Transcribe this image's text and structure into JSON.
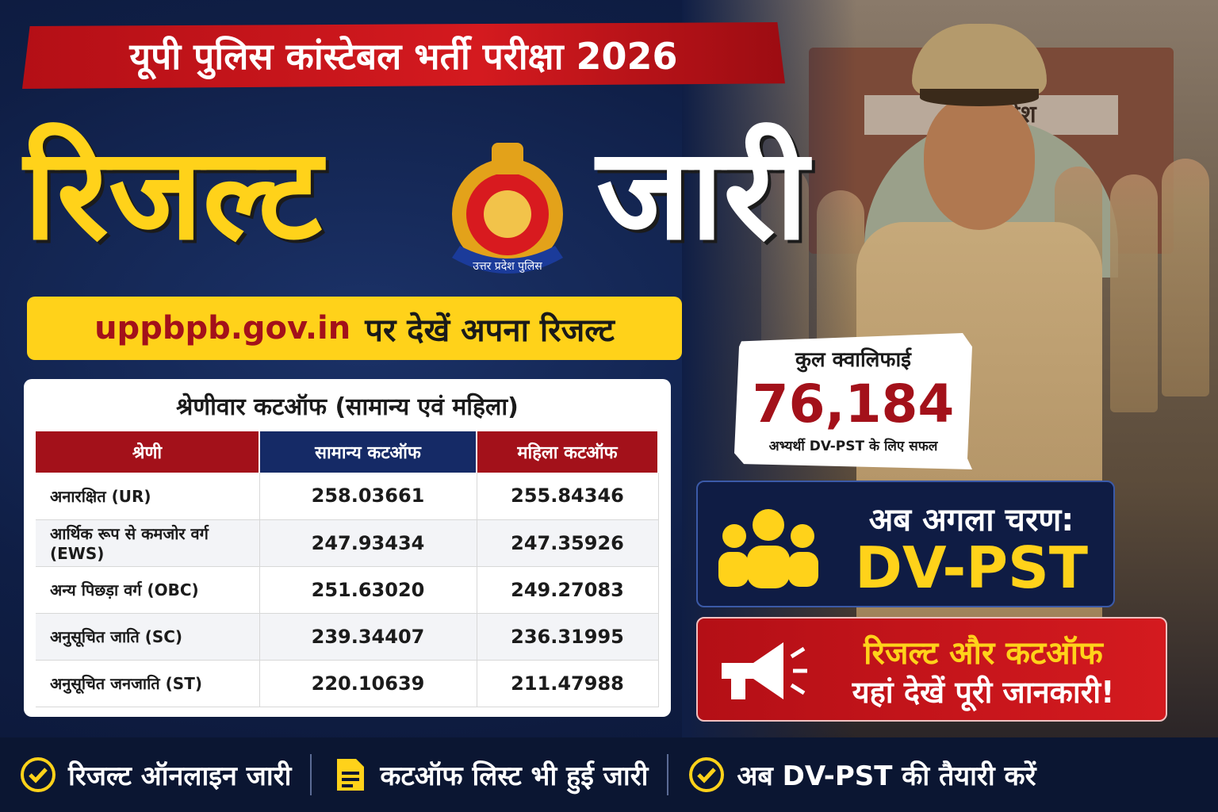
{
  "header": {
    "banner": "यूपी पुलिस कांस्टेबल भर्ती परीक्षा 2026",
    "big_left": "रिजल्ट",
    "big_right": "जारी",
    "emblem_text": "उत्तर प्रदेश पुलिस"
  },
  "url_bar": {
    "url": "uppbpb.gov.in",
    "rest": "पर देखें अपना रिजल्ट"
  },
  "table": {
    "title": "श्रेणीवार कटऑफ (सामान्य एवं महिला)",
    "headers": [
      "श्रेणी",
      "सामान्य कटऑफ",
      "महिला कटऑफ"
    ],
    "rows": [
      [
        "अनारक्षित (UR)",
        "258.03661",
        "255.84346"
      ],
      [
        "आर्थिक रूप से कमजोर वर्ग (EWS)",
        "247.93434",
        "247.35926"
      ],
      [
        "अन्य पिछड़ा वर्ग (OBC)",
        "251.63020",
        "249.27083"
      ],
      [
        "अनुसूचित जाति (SC)",
        "239.34407",
        "236.31995"
      ],
      [
        "अनुसूचित जनजाति (ST)",
        "220.10639",
        "211.47988"
      ]
    ]
  },
  "qualified": {
    "label": "कुल क्वालिफाई",
    "count": "76,184",
    "sub": "अभ्यर्थी DV-PST के लिए सफल"
  },
  "next_step": {
    "label": "अब अगला चरण:",
    "value": "DV-PST"
  },
  "cta": {
    "line1": "रिजल्ट और कटऑफ",
    "line2": "यहां देखें पूरी जानकारी!"
  },
  "photo": {
    "gate_sign": "उत्तर प्रदेश"
  },
  "footer": {
    "items": [
      {
        "icon": "check-circle-icon",
        "label": "रिजल्ट ऑनलाइन जारी"
      },
      {
        "icon": "document-icon",
        "label": "कटऑफ लिस्ट भी हुई जारी"
      },
      {
        "icon": "check-circle-icon",
        "label": "अब DV-PST की तैयारी करें"
      }
    ]
  },
  "colors": {
    "red": "#a3111a",
    "yellow": "#ffd21a",
    "navy": "#152a66"
  }
}
